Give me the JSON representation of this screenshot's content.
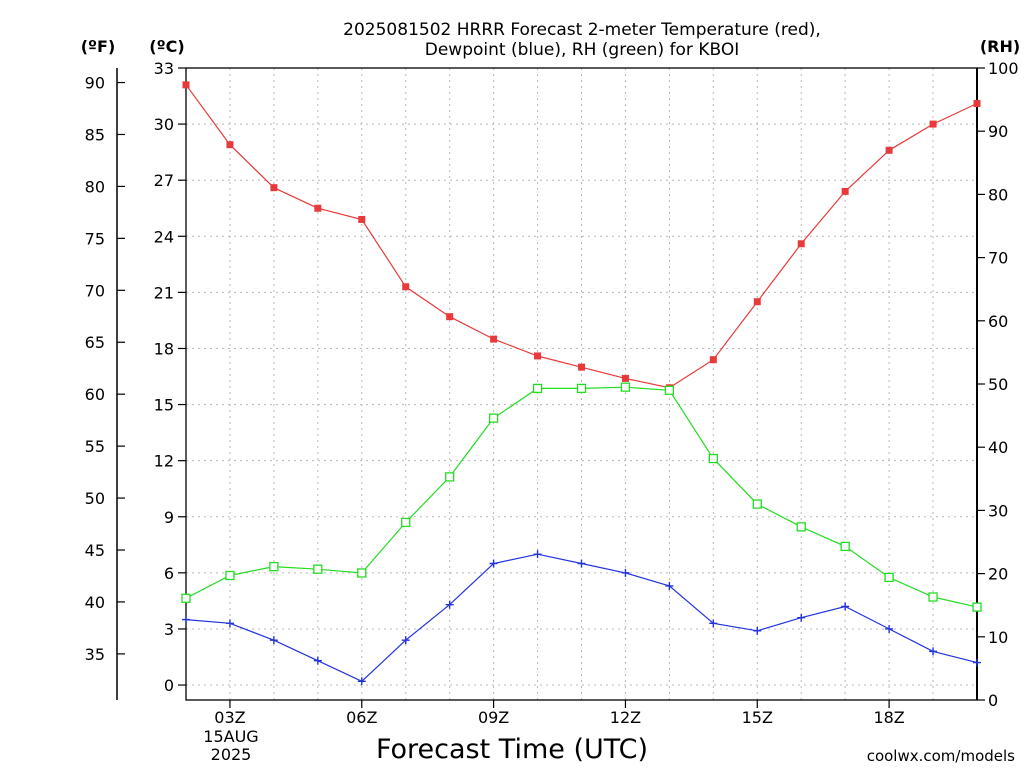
{
  "title_line1": "2025081502 HRRR Forecast 2-meter Temperature (red),",
  "title_line2": "Dewpoint (blue), RH (green) for KBOI",
  "unit_f": "(ºF)",
  "unit_c": "(ºC)",
  "unit_rh": "(RH)",
  "xlabel": "Forecast Time (UTC)",
  "date_label_day": "15AUG",
  "date_label_year": "2025",
  "credit": "coolwx.com/models",
  "colors": {
    "temperature": "#e83a3a",
    "dewpoint": "#2233dd",
    "rh": "#22dd22",
    "credit": "#e83a3a"
  },
  "chart_data": {
    "type": "line",
    "x_hours": [
      2,
      3,
      4,
      5,
      6,
      7,
      8,
      9,
      10,
      11,
      12,
      13,
      14,
      15,
      16,
      17,
      18,
      19,
      20
    ],
    "x_ticks": [
      {
        "hour": 3,
        "label": "03Z"
      },
      {
        "hour": 6,
        "label": "06Z"
      },
      {
        "hour": 9,
        "label": "09Z"
      },
      {
        "hour": 12,
        "label": "12Z"
      },
      {
        "hour": 15,
        "label": "15Z"
      },
      {
        "hour": 18,
        "label": "18Z"
      }
    ],
    "xlim": [
      2,
      20
    ],
    "celsius_axis": {
      "ylim": [
        -0.8,
        33
      ],
      "ticks": [
        0,
        3,
        6,
        9,
        12,
        15,
        18,
        21,
        24,
        27,
        30,
        33
      ]
    },
    "fahrenheit_axis": {
      "ticks": [
        35,
        40,
        45,
        50,
        55,
        60,
        65,
        70,
        75,
        80,
        85,
        90
      ]
    },
    "rh_axis": {
      "ylim": [
        0,
        100
      ],
      "ticks": [
        0,
        10,
        20,
        30,
        40,
        50,
        60,
        70,
        80,
        90,
        100
      ]
    },
    "series": [
      {
        "name": "Temperature",
        "axis": "celsius",
        "values": [
          32.1,
          28.9,
          26.6,
          25.5,
          24.9,
          21.3,
          19.7,
          18.5,
          17.6,
          17.0,
          16.4,
          15.9,
          17.4,
          20.5,
          23.6,
          26.4,
          28.6,
          30.0,
          31.1
        ]
      },
      {
        "name": "Dewpoint",
        "axis": "celsius",
        "values": [
          3.5,
          3.3,
          2.4,
          1.3,
          0.2,
          2.4,
          4.3,
          6.5,
          7.0,
          6.5,
          6.0,
          5.3,
          3.3,
          2.9,
          3.6,
          4.2,
          3.0,
          1.8,
          1.2
        ]
      },
      {
        "name": "RH",
        "axis": "rh",
        "values": [
          16.1,
          19.7,
          21.1,
          20.7,
          20.1,
          28.1,
          35.3,
          44.6,
          49.3,
          49.3,
          49.5,
          49.0,
          38.2,
          31.0,
          27.4,
          24.3,
          19.4,
          16.3,
          14.7
        ]
      }
    ]
  }
}
